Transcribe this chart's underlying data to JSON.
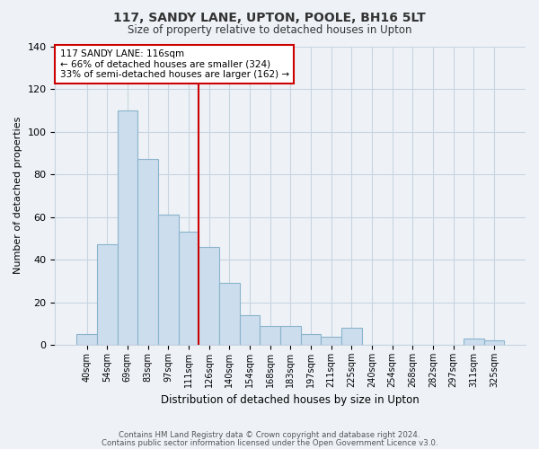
{
  "title": "117, SANDY LANE, UPTON, POOLE, BH16 5LT",
  "subtitle": "Size of property relative to detached houses in Upton",
  "xlabel": "Distribution of detached houses by size in Upton",
  "ylabel": "Number of detached properties",
  "bar_labels": [
    "40sqm",
    "54sqm",
    "69sqm",
    "83sqm",
    "97sqm",
    "111sqm",
    "126sqm",
    "140sqm",
    "154sqm",
    "168sqm",
    "183sqm",
    "197sqm",
    "211sqm",
    "225sqm",
    "240sqm",
    "254sqm",
    "268sqm",
    "282sqm",
    "297sqm",
    "311sqm",
    "325sqm"
  ],
  "bar_values": [
    5,
    47,
    110,
    87,
    61,
    53,
    46,
    29,
    14,
    9,
    9,
    5,
    4,
    8,
    0,
    0,
    0,
    0,
    0,
    3,
    2
  ],
  "bar_color": "#ccdded",
  "bar_edge_color": "#8ab4cc",
  "highlight_line_color": "#cc0000",
  "ylim": [
    0,
    140
  ],
  "yticks": [
    0,
    20,
    40,
    60,
    80,
    100,
    120,
    140
  ],
  "annotation_title": "117 SANDY LANE: 116sqm",
  "annotation_line1": "← 66% of detached houses are smaller (324)",
  "annotation_line2": "33% of semi-detached houses are larger (162) →",
  "annotation_box_color": "#ffffff",
  "annotation_box_edge_color": "#cc0000",
  "footer_line1": "Contains HM Land Registry data © Crown copyright and database right 2024.",
  "footer_line2": "Contains public sector information licensed under the Open Government Licence v3.0.",
  "background_color": "#eef2f7",
  "plot_background_color": "#eef2f7",
  "grid_color": "#c8d4e0"
}
